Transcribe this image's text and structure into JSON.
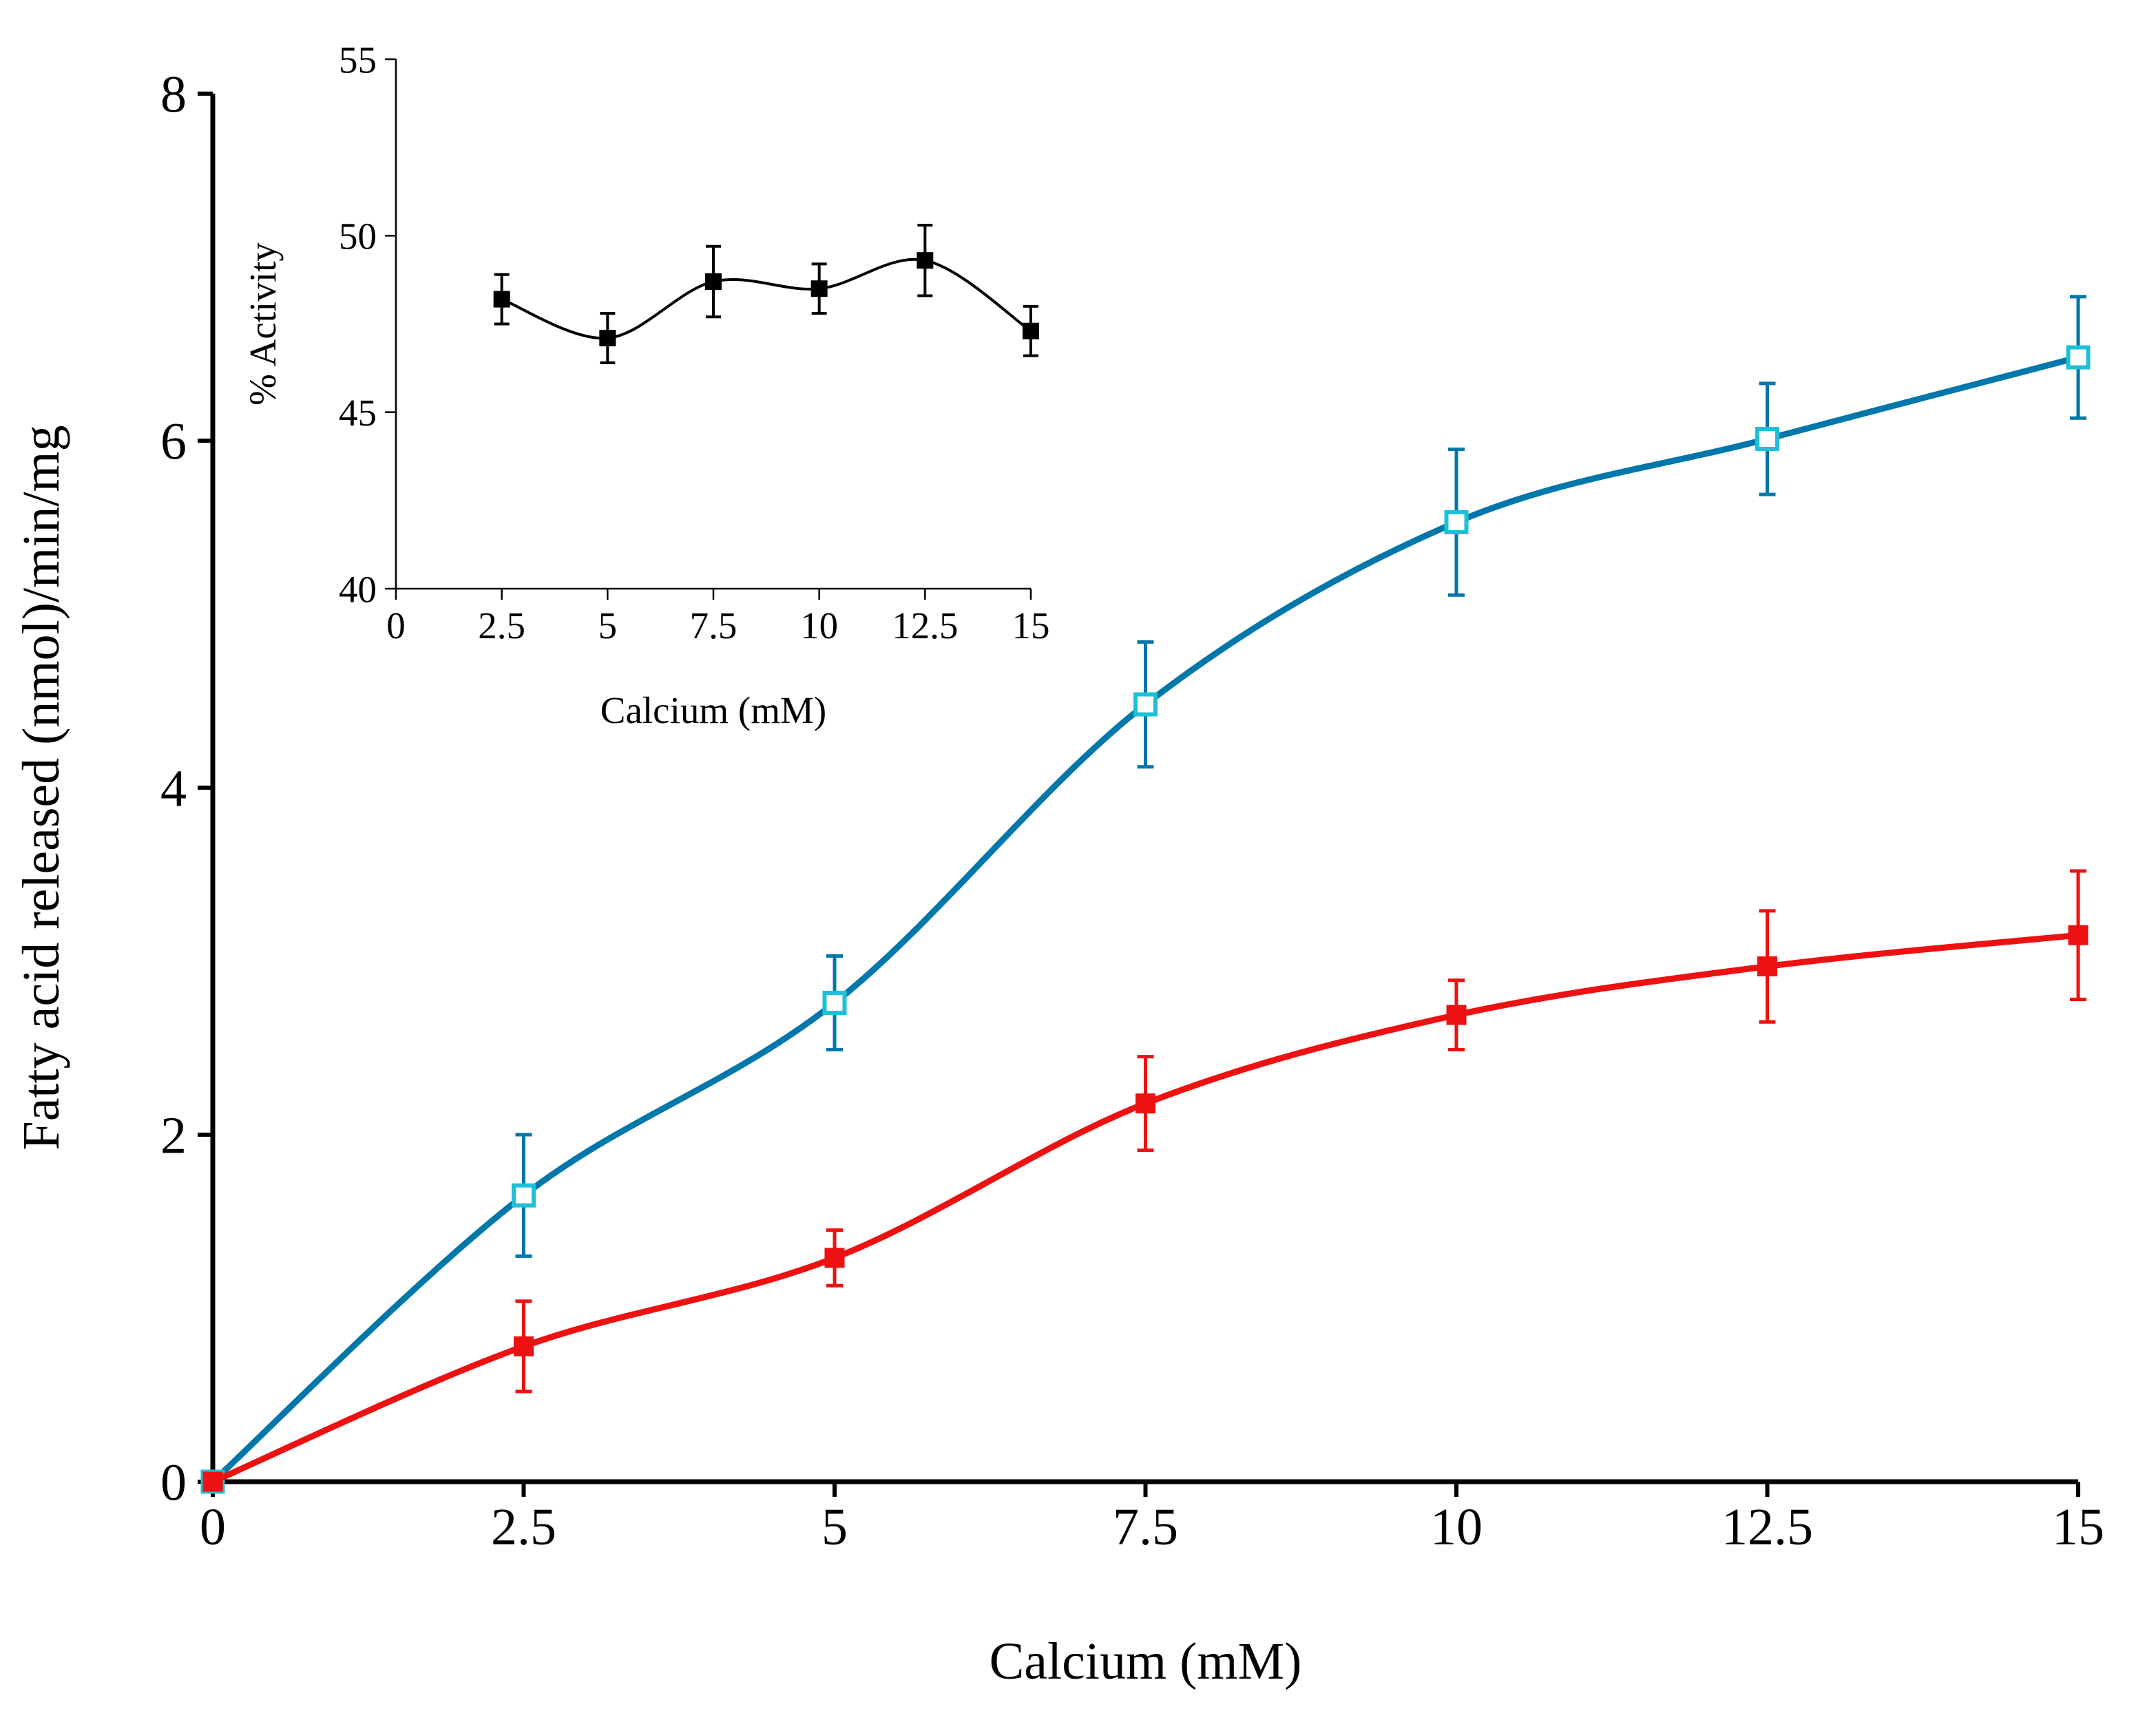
{
  "chart_data": [
    {
      "type": "line",
      "title": "",
      "xlabel": "Calcium (mM)",
      "ylabel": "Fatty acid released (nmol)/min/mg",
      "xlim": [
        0,
        15
      ],
      "ylim": [
        0,
        8
      ],
      "xticks": [
        0,
        2.5,
        5,
        7.5,
        10,
        12.5,
        15
      ],
      "xtick_labels": [
        "0",
        "2.5",
        "5",
        "7.5",
        "10",
        "12.5",
        "15"
      ],
      "yticks": [
        0,
        2,
        4,
        6,
        8
      ],
      "ytick_labels": [
        "0",
        "2",
        "4",
        "6",
        "8"
      ],
      "grid": false,
      "legend": "none",
      "x": [
        0,
        2.5,
        5,
        7.5,
        10,
        12.5,
        15
      ],
      "series": [
        {
          "name": "open-square-series",
          "color": "#0077AA",
          "marker_color": "#1EC0D8",
          "marker": "open-square",
          "values": [
            0,
            1.65,
            2.76,
            4.48,
            5.53,
            6.01,
            6.48
          ],
          "errors": [
            0,
            0.35,
            0.27,
            0.36,
            0.42,
            0.32,
            0.35
          ]
        },
        {
          "name": "filled-square-series",
          "color": "#EE1111",
          "marker_color": "#EE1111",
          "marker": "filled-square",
          "values": [
            0,
            0.78,
            1.29,
            2.18,
            2.69,
            2.97,
            3.15
          ],
          "errors": [
            0,
            0.26,
            0.16,
            0.27,
            0.2,
            0.32,
            0.37
          ]
        }
      ]
    },
    {
      "type": "line",
      "title": "",
      "xlabel": "Calcium (mM)",
      "ylabel": "% Activity",
      "xlim": [
        0,
        15
      ],
      "ylim": [
        40,
        55
      ],
      "xticks": [
        0,
        2.5,
        5,
        7.5,
        10,
        12.5,
        15
      ],
      "xtick_labels": [
        "0",
        "2.5",
        "5",
        "7.5",
        "10",
        "12.5",
        "15"
      ],
      "yticks": [
        40,
        45,
        50,
        55
      ],
      "ytick_labels": [
        "40",
        "45",
        "50",
        "55"
      ],
      "grid": false,
      "legend": "none",
      "series": [
        {
          "name": "percent-activity",
          "color": "#000000",
          "marker_color": "#000000",
          "marker": "filled-square",
          "x": [
            2.5,
            5,
            7.5,
            10,
            12.5,
            15
          ],
          "values": [
            48.2,
            47.1,
            48.7,
            48.5,
            49.3,
            47.3
          ],
          "errors": [
            0.7,
            0.7,
            1.0,
            0.7,
            1.0,
            0.7
          ]
        }
      ]
    }
  ]
}
